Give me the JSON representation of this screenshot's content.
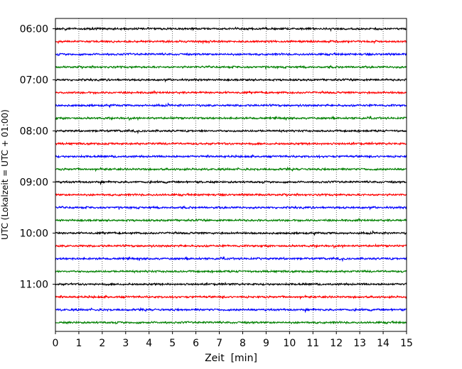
{
  "chart_data": {
    "type": "line",
    "title": "",
    "xlabel": "Zeit  [min]",
    "ylabel": "UTC (Lokalzeit = UTC + 01:00)",
    "xlim": [
      0,
      15
    ],
    "x_ticks": [
      0,
      1,
      2,
      3,
      4,
      5,
      6,
      7,
      8,
      9,
      10,
      11,
      12,
      13,
      14,
      15
    ],
    "y_tick_labels": [
      "06:00",
      "07:00",
      "08:00",
      "09:00",
      "10:00",
      "11:00"
    ],
    "trace_start": "06:00",
    "trace_interval_min": 15,
    "trace_count": 24,
    "trace_colors": [
      "#000000",
      "#ff0000",
      "#0000ff",
      "#008000"
    ],
    "grid": "vertical dotted at each minute",
    "legend": "none"
  }
}
